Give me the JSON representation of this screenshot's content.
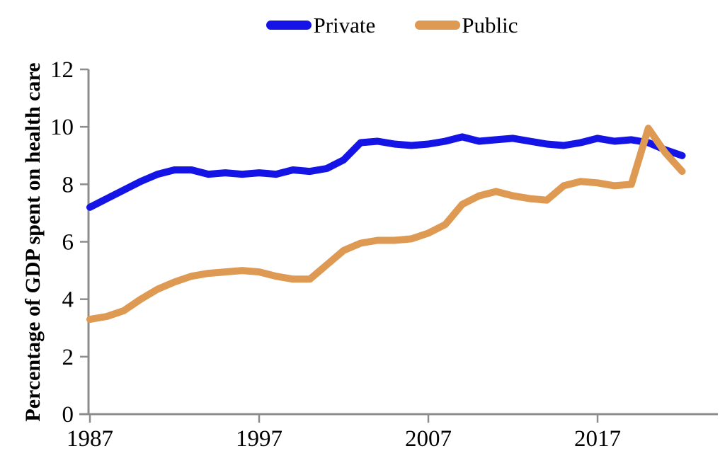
{
  "chart_data": {
    "type": "line",
    "title": "",
    "xlabel": "",
    "ylabel": "Percentage of GDP spent on health care",
    "ylim": [
      0,
      12
    ],
    "yticks": [
      0,
      2,
      4,
      6,
      8,
      10,
      12
    ],
    "xticks": [
      1987,
      1997,
      2007,
      2017
    ],
    "grid": false,
    "legend_position": "top-center",
    "axis_color": "#8c8c8c",
    "x": [
      1987,
      1988,
      1989,
      1990,
      1991,
      1992,
      1993,
      1994,
      1995,
      1996,
      1997,
      1998,
      1999,
      2000,
      2001,
      2002,
      2003,
      2004,
      2005,
      2006,
      2007,
      2008,
      2009,
      2010,
      2011,
      2012,
      2013,
      2014,
      2015,
      2016,
      2017,
      2018,
      2019,
      2020,
      2021,
      2022
    ],
    "series": [
      {
        "name": "Private",
        "color": "#1414e6",
        "values": [
          7.2,
          7.5,
          7.8,
          8.1,
          8.35,
          8.5,
          8.5,
          8.35,
          8.4,
          8.35,
          8.4,
          8.35,
          8.5,
          8.45,
          8.55,
          8.85,
          9.45,
          9.5,
          9.4,
          9.35,
          9.4,
          9.5,
          9.65,
          9.5,
          9.55,
          9.6,
          9.5,
          9.4,
          9.35,
          9.45,
          9.6,
          9.5,
          9.55,
          9.45,
          9.2,
          9.0
        ]
      },
      {
        "name": "Public",
        "color": "#de9952",
        "values": [
          3.3,
          3.4,
          3.6,
          4.0,
          4.35,
          4.6,
          4.8,
          4.9,
          4.95,
          5.0,
          4.95,
          4.8,
          4.7,
          4.7,
          5.2,
          5.7,
          5.95,
          6.05,
          6.05,
          6.1,
          6.3,
          6.6,
          7.3,
          7.6,
          7.75,
          7.6,
          7.5,
          7.45,
          7.95,
          8.1,
          8.05,
          7.95,
          8.0,
          9.95,
          9.1,
          8.45
        ]
      }
    ]
  }
}
